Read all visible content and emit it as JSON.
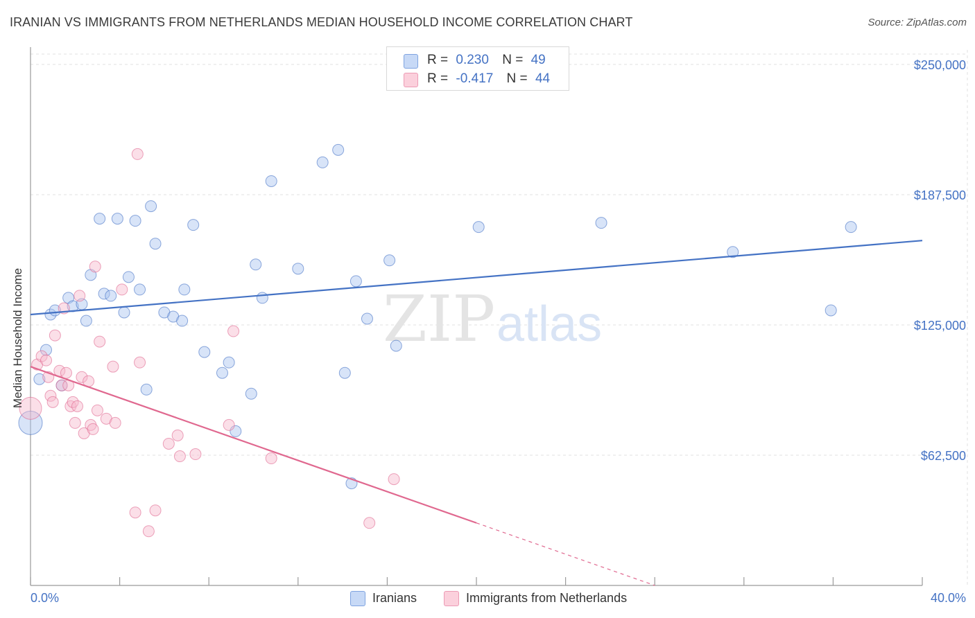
{
  "header": {
    "title": "IRANIAN VS IMMIGRANTS FROM NETHERLANDS MEDIAN HOUSEHOLD INCOME CORRELATION CHART",
    "source": "Source: ZipAtlas.com"
  },
  "watermark": {
    "part1": "ZIP",
    "part2": "atlas"
  },
  "legend": {
    "r_label": "R =",
    "n_label": "N =",
    "entries": [
      {
        "r": "0.230",
        "n": "49",
        "color": "#a9c4f0"
      },
      {
        "r": "-0.417",
        "n": "44",
        "color": "#f7b8cb"
      }
    ]
  },
  "chart_data": {
    "type": "scatter",
    "title": "IRANIAN VS IMMIGRANTS FROM NETHERLANDS MEDIAN HOUSEHOLD INCOME CORRELATION CHART",
    "xlabel": "",
    "ylabel": "Median Household Income",
    "xlim": [
      0,
      40
    ],
    "ylim": [
      0,
      257000
    ],
    "x_tick_labels": [
      "0.0%",
      "40.0%"
    ],
    "y_tick_labels": [
      "$250,000",
      "$187,500",
      "$125,000",
      "$62,500"
    ],
    "y_ticks": [
      250000,
      187500,
      125000,
      62500
    ],
    "grid": true,
    "legend_placement": "bottom-center",
    "series": [
      {
        "name": "Iranians",
        "color": "#4472c4",
        "fill": "#a9c4f0",
        "trend": {
          "x1": 0,
          "y1": 130000,
          "x2": 40,
          "y2": 165500
        },
        "points": [
          [
            0.0,
            78000
          ],
          [
            0.4,
            99000
          ],
          [
            0.7,
            113000
          ],
          [
            0.9,
            130000
          ],
          [
            1.1,
            132000
          ],
          [
            1.4,
            96000
          ],
          [
            1.7,
            138000
          ],
          [
            1.9,
            134000
          ],
          [
            2.3,
            135000
          ],
          [
            2.5,
            127000
          ],
          [
            2.7,
            149000
          ],
          [
            3.1,
            176000
          ],
          [
            3.3,
            140000
          ],
          [
            3.6,
            139000
          ],
          [
            3.9,
            176000
          ],
          [
            4.2,
            131000
          ],
          [
            4.4,
            148000
          ],
          [
            4.7,
            175000
          ],
          [
            4.9,
            142000
          ],
          [
            5.2,
            94000
          ],
          [
            5.4,
            182000
          ],
          [
            5.6,
            164000
          ],
          [
            6.0,
            131000
          ],
          [
            6.4,
            129000
          ],
          [
            6.8,
            127000
          ],
          [
            6.9,
            142000
          ],
          [
            7.3,
            173000
          ],
          [
            7.8,
            112000
          ],
          [
            8.6,
            102000
          ],
          [
            8.9,
            107000
          ],
          [
            9.2,
            74000
          ],
          [
            9.9,
            92000
          ],
          [
            10.1,
            154000
          ],
          [
            10.4,
            138000
          ],
          [
            10.8,
            194000
          ],
          [
            12.0,
            152000
          ],
          [
            13.1,
            203000
          ],
          [
            13.8,
            209000
          ],
          [
            14.1,
            102000
          ],
          [
            14.4,
            49000
          ],
          [
            14.6,
            146000
          ],
          [
            15.1,
            128000
          ],
          [
            16.1,
            156000
          ],
          [
            16.4,
            115000
          ],
          [
            20.1,
            172000
          ],
          [
            25.6,
            174000
          ],
          [
            31.5,
            160000
          ],
          [
            35.9,
            132000
          ],
          [
            36.8,
            172000
          ]
        ]
      },
      {
        "name": "Immigrants from Netherlands",
        "color": "#e0688f",
        "fill": "#f7b8cb",
        "trend": {
          "x1": 0,
          "y1": 105000,
          "x2": 20,
          "y2": 30000
        },
        "trend_dash": {
          "x1": 20,
          "y1": 30000,
          "x2": 28,
          "y2": 0
        },
        "points": [
          [
            0.0,
            85000
          ],
          [
            0.3,
            106000
          ],
          [
            0.5,
            110000
          ],
          [
            0.7,
            108000
          ],
          [
            0.8,
            100000
          ],
          [
            0.9,
            91000
          ],
          [
            1.0,
            88000
          ],
          [
            1.1,
            120000
          ],
          [
            1.3,
            103000
          ],
          [
            1.4,
            96000
          ],
          [
            1.5,
            133000
          ],
          [
            1.6,
            102000
          ],
          [
            1.7,
            96000
          ],
          [
            1.8,
            86000
          ],
          [
            1.9,
            88000
          ],
          [
            2.0,
            78000
          ],
          [
            2.1,
            86000
          ],
          [
            2.2,
            139000
          ],
          [
            2.3,
            100000
          ],
          [
            2.4,
            73000
          ],
          [
            2.6,
            98000
          ],
          [
            2.7,
            77000
          ],
          [
            2.8,
            75000
          ],
          [
            2.9,
            153000
          ],
          [
            3.0,
            84000
          ],
          [
            3.1,
            117000
          ],
          [
            3.4,
            80000
          ],
          [
            3.7,
            105000
          ],
          [
            3.8,
            78000
          ],
          [
            4.1,
            142000
          ],
          [
            4.7,
            35000
          ],
          [
            4.8,
            207000
          ],
          [
            4.9,
            107000
          ],
          [
            5.3,
            26000
          ],
          [
            5.6,
            36000
          ],
          [
            6.2,
            68000
          ],
          [
            6.6,
            72000
          ],
          [
            6.7,
            62000
          ],
          [
            7.4,
            63000
          ],
          [
            8.9,
            77000
          ],
          [
            9.1,
            122000
          ],
          [
            10.8,
            61000
          ],
          [
            15.2,
            30000
          ],
          [
            16.3,
            51000
          ]
        ]
      }
    ]
  }
}
